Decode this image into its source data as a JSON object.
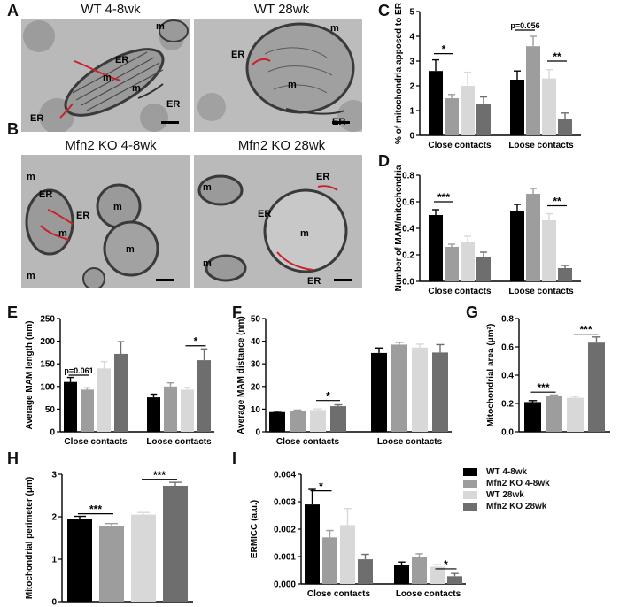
{
  "panel_letters": [
    "A",
    "B",
    "C",
    "D",
    "E",
    "F",
    "G",
    "H",
    "I"
  ],
  "micrographs": [
    {
      "letter": "A",
      "title": "WT 4-8wk",
      "labels": [
        "m",
        "ER",
        "m",
        "m",
        "ER",
        "ER"
      ]
    },
    {
      "title": "WT 28wk",
      "labels": [
        "m",
        "ER",
        "m",
        "ER"
      ]
    },
    {
      "letter": "B",
      "title": "Mfn2 KO 4-8wk",
      "labels": [
        "m",
        "ER",
        "ER",
        "m",
        "m",
        "m",
        "m"
      ]
    },
    {
      "title": "Mfn2 KO 28wk",
      "labels": [
        "m",
        "ER",
        "m",
        "m",
        "ER",
        "ER"
      ]
    }
  ],
  "colors": {
    "wt48": "#000000",
    "ko48": "#9d9d9d",
    "wt28": "#d8d8d8",
    "ko28": "#6e6e6e",
    "contact": "#c8222a"
  },
  "legend": [
    {
      "label": "WT 4-8wk",
      "color": "#000000"
    },
    {
      "label": "Mfn2 KO 4-8wk",
      "color": "#9d9d9d"
    },
    {
      "label": "WT 28wk",
      "color": "#d8d8d8"
    },
    {
      "label": "Mfn2 KO 28wk",
      "color": "#6e6e6e"
    }
  ],
  "chart_data": [
    {
      "id": "C",
      "type": "bar",
      "ylabel": "% of mitochondria apposed to ER",
      "categories": [
        "Close contacts",
        "Loose contacts"
      ],
      "yticks": [
        0,
        1,
        2,
        3,
        4,
        5
      ],
      "ylim": [
        0,
        5
      ],
      "series_values": [
        [
          2.6,
          2.25
        ],
        [
          1.5,
          3.6
        ],
        [
          2.0,
          2.3
        ],
        [
          1.25,
          0.65
        ]
      ],
      "errors": [
        [
          0.45,
          0.35
        ],
        [
          0.15,
          0.4
        ],
        [
          0.55,
          0.35
        ],
        [
          0.3,
          0.25
        ]
      ],
      "sig": [
        {
          "group": 0,
          "from": 0,
          "to": 1,
          "y": 3.3,
          "text": "*"
        },
        {
          "group": 1,
          "from": 0,
          "to": 1,
          "y": 4.25,
          "text": "p=0.056"
        },
        {
          "group": 1,
          "from": 2,
          "to": 3,
          "y": 3.0,
          "text": "**"
        }
      ]
    },
    {
      "id": "D",
      "type": "bar",
      "ylabel": "Number of MAM/mitochondria",
      "categories": [
        "Close contacts",
        "Loose contacts"
      ],
      "yticks": [
        "0.0",
        "0.2",
        "0.4",
        "0.6",
        "0.8"
      ],
      "ylim": [
        0,
        0.8
      ],
      "series_values": [
        [
          0.5,
          0.53
        ],
        [
          0.26,
          0.66
        ],
        [
          0.3,
          0.46
        ],
        [
          0.18,
          0.1
        ]
      ],
      "errors": [
        [
          0.04,
          0.05
        ],
        [
          0.02,
          0.04
        ],
        [
          0.04,
          0.05
        ],
        [
          0.04,
          0.02
        ]
      ],
      "sig": [
        {
          "group": 0,
          "from": 0,
          "to": 1,
          "y": 0.6,
          "text": "***"
        },
        {
          "group": 1,
          "from": 2,
          "to": 3,
          "y": 0.57,
          "text": "**"
        }
      ]
    },
    {
      "id": "E",
      "type": "bar",
      "ylabel": "Average MAM length (nm)",
      "categories": [
        "Close contacts",
        "Loose contacts"
      ],
      "yticks": [
        0,
        50,
        100,
        150,
        200,
        250
      ],
      "ylim": [
        0,
        250
      ],
      "series_values": [
        [
          110,
          76
        ],
        [
          93,
          100
        ],
        [
          140,
          93
        ],
        [
          172,
          158
        ]
      ],
      "errors": [
        [
          10,
          7
        ],
        [
          4,
          8
        ],
        [
          15,
          5
        ],
        [
          27,
          25
        ]
      ],
      "sig": [
        {
          "group": 0,
          "from": 0,
          "to": 1,
          "y": 125,
          "text": "p=0.061"
        },
        {
          "group": 1,
          "from": 2,
          "to": 3,
          "y": 190,
          "text": "*"
        }
      ]
    },
    {
      "id": "F",
      "type": "bar",
      "ylabel": "Average MAM distance (nm)",
      "categories": [
        "Close contacts",
        "Loose contacts"
      ],
      "yticks": [
        0,
        10,
        20,
        30,
        40,
        50
      ],
      "ylim": [
        0,
        50
      ],
      "series_values": [
        [
          8.7,
          34.8
        ],
        [
          9.3,
          38.5
        ],
        [
          9.6,
          37.2
        ],
        [
          11.3,
          35.0
        ]
      ],
      "errors": [
        [
          0.4,
          2.2
        ],
        [
          0.3,
          1.0
        ],
        [
          0.5,
          1.5
        ],
        [
          0.6,
          3.5
        ]
      ],
      "sig": [
        {
          "group": 0,
          "from": 2,
          "to": 3,
          "y": 13.8,
          "text": "*"
        }
      ]
    },
    {
      "id": "G",
      "type": "bar",
      "ylabel": "Mitochondrial area (μm²)",
      "categories": [],
      "yticks": [
        "0.0",
        "0.2",
        "0.4",
        "0.6",
        "0.8"
      ],
      "ylim": [
        0,
        0.8
      ],
      "series_values": [
        [
          0.21
        ],
        [
          0.25
        ],
        [
          0.24
        ],
        [
          0.63
        ]
      ],
      "errors": [
        [
          0.01
        ],
        [
          0.01
        ],
        [
          0.01
        ],
        [
          0.04
        ]
      ],
      "sig": [
        {
          "group": 0,
          "from": 0,
          "to": 1,
          "y": 0.28,
          "text": "***"
        },
        {
          "group": 0,
          "from": 2,
          "to": 3,
          "y": 0.69,
          "text": "***"
        }
      ]
    },
    {
      "id": "H",
      "type": "bar",
      "ylabel": "Mitochondrial perimeter (μm)",
      "categories": [],
      "yticks": [
        0,
        1,
        2,
        3
      ],
      "ylim": [
        0,
        3
      ],
      "series_values": [
        [
          1.95
        ],
        [
          1.78
        ],
        [
          2.05
        ],
        [
          2.73
        ]
      ],
      "errors": [
        [
          0.06
        ],
        [
          0.06
        ],
        [
          0.05
        ],
        [
          0.08
        ]
      ],
      "sig": [
        {
          "group": 0,
          "from": 0,
          "to": 1,
          "y": 2.07,
          "text": "***"
        },
        {
          "group": 0,
          "from": 2,
          "to": 3,
          "y": 2.88,
          "text": "***"
        }
      ]
    },
    {
      "id": "I",
      "type": "bar",
      "ylabel": "ERMICC (a.u.)",
      "categories": [
        "Close contacts",
        "Loose contacts"
      ],
      "yticks": [
        "0.000",
        "0.001",
        "0.002",
        "0.003",
        "0.004"
      ],
      "ylim": [
        0,
        0.004
      ],
      "series_values": [
        [
          0.0029,
          0.0007
        ],
        [
          0.0017,
          0.001
        ],
        [
          0.00215,
          0.00063
        ],
        [
          0.0009,
          0.00028
        ]
      ],
      "errors": [
        [
          0.00055,
          0.0001
        ],
        [
          0.00025,
          0.0001
        ],
        [
          0.0006,
          8e-05
        ],
        [
          0.00018,
          0.0001
        ]
      ],
      "sig": [
        {
          "group": 0,
          "from": 0,
          "to": 1,
          "y": 0.0034,
          "text": "*"
        },
        {
          "group": 1,
          "from": 2,
          "to": 3,
          "y": 0.00055,
          "text": "*"
        }
      ]
    }
  ]
}
